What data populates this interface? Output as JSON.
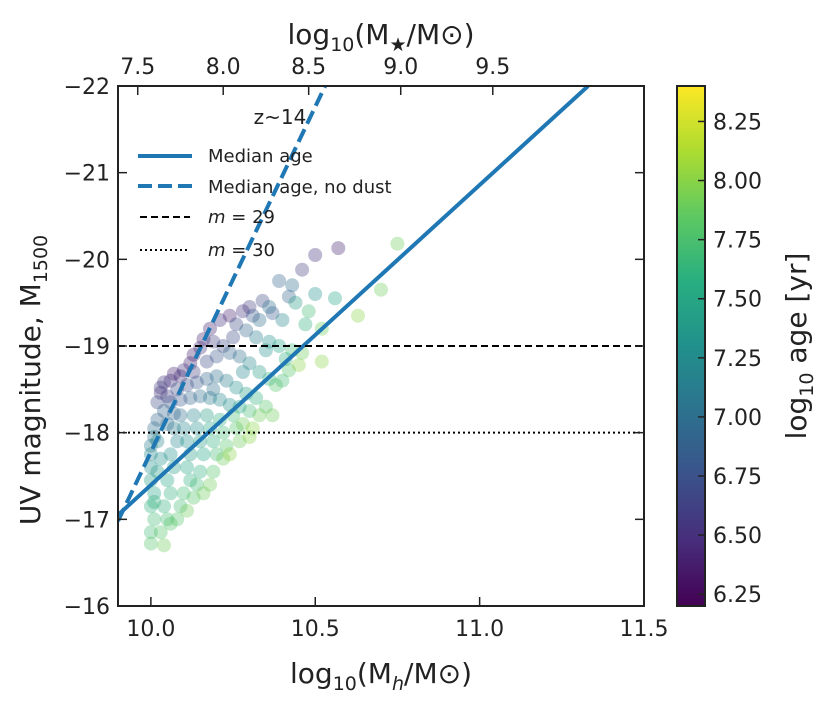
{
  "chart_data": {
    "type": "scatter",
    "xlabel": "log10(Mh/M⊙)",
    "xlabel_parts": {
      "pre": "log",
      "sub": "10",
      "mid": "(M",
      "msub": "h",
      "post": "/M⊙)"
    },
    "ylabel": "UV magnitude, M1500",
    "ylabel_parts": {
      "pre": "UV magnitude, M",
      "sub": "1500"
    },
    "top_xlabel": "log10(M★/M⊙)",
    "top_xlabel_parts": {
      "pre": "log",
      "sub": "10",
      "mid": "(M",
      "msub": "★",
      "post": "/M⊙)"
    },
    "colorbar_label": "log10 age [yr]",
    "colorbar_label_parts": {
      "pre": "log",
      "sub": "10",
      "post": " age [yr]"
    },
    "xlim": [
      9.9,
      11.5
    ],
    "ylim": [
      -16,
      -22
    ],
    "x_ticks": [
      10.0,
      10.5,
      11.0,
      11.5
    ],
    "x_tick_labels": [
      "10.0",
      "10.5",
      "11.0",
      "11.5"
    ],
    "y_ticks": [
      -16,
      -17,
      -18,
      -19,
      -20,
      -21,
      -22
    ],
    "y_tick_labels": [
      "−16",
      "−17",
      "−18",
      "−19",
      "−20",
      "−21",
      "−22"
    ],
    "top_ticks_mh": [
      10.0,
      10.5,
      11.0
    ],
    "top_tick_positions_mh": [
      9.96,
      10.22,
      10.48,
      10.76,
      11.04
    ],
    "top_tick_labels": [
      "7.5",
      "8.0",
      "8.5",
      "9.0",
      "9.5"
    ],
    "colorbar_range": [
      6.2,
      8.4
    ],
    "colorbar_ticks": [
      6.25,
      6.5,
      6.75,
      7.0,
      7.25,
      7.5,
      7.75,
      8.0,
      8.25
    ],
    "colorbar_tick_labels": [
      "6.25",
      "6.50",
      "6.75",
      "7.00",
      "7.25",
      "7.50",
      "7.75",
      "8.00",
      "8.25"
    ],
    "legend": {
      "title": "z~14",
      "entries": [
        {
          "label": "Median age",
          "style": "solid"
        },
        {
          "label": "Median age, no dust",
          "style": "dashed"
        },
        {
          "label_pre": "m",
          "label_post": " = 29",
          "style": "dashed-thin"
        },
        {
          "label_pre": "m",
          "label_post": " = 30",
          "style": "dotted"
        }
      ]
    },
    "series": [
      {
        "name": "Median age",
        "type": "line",
        "style": "solid",
        "color": "#1f77b4",
        "x": [
          9.9,
          11.33
        ],
        "y": [
          -17.05,
          -22.0
        ]
      },
      {
        "name": "Median age, no dust",
        "type": "line",
        "style": "dashed",
        "color": "#1f77b4",
        "x": [
          9.9,
          10.53
        ],
        "y": [
          -16.98,
          -22.0
        ]
      },
      {
        "name": "m=29",
        "type": "hline",
        "style": "dashed",
        "color": "#000000",
        "y": -19.0
      },
      {
        "name": "m=30",
        "type": "hline",
        "style": "dotted",
        "color": "#000000",
        "y": -18.0
      }
    ],
    "scatter": [
      [
        10.57,
        -20.13,
        6.4
      ],
      [
        10.5,
        -20.05,
        6.5
      ],
      [
        10.46,
        -19.88,
        6.6
      ],
      [
        10.75,
        -20.18,
        7.9
      ],
      [
        10.39,
        -19.75,
        6.9
      ],
      [
        10.43,
        -19.7,
        7.0
      ],
      [
        10.5,
        -19.6,
        7.3
      ],
      [
        10.56,
        -19.55,
        7.5
      ],
      [
        10.7,
        -19.65,
        7.9
      ],
      [
        10.34,
        -19.52,
        6.7
      ],
      [
        10.42,
        -19.57,
        6.9
      ],
      [
        10.3,
        -19.45,
        6.6
      ],
      [
        10.37,
        -19.38,
        6.8
      ],
      [
        10.33,
        -19.3,
        7.0
      ],
      [
        10.4,
        -19.3,
        7.2
      ],
      [
        10.47,
        -19.25,
        7.6
      ],
      [
        10.63,
        -19.35,
        8.0
      ],
      [
        10.28,
        -19.4,
        6.5
      ],
      [
        10.24,
        -19.35,
        6.4
      ],
      [
        10.21,
        -19.3,
        6.5
      ],
      [
        10.26,
        -19.25,
        6.7
      ],
      [
        10.29,
        -19.18,
        6.9
      ],
      [
        10.32,
        -19.1,
        7.1
      ],
      [
        10.36,
        -19.05,
        7.3
      ],
      [
        10.39,
        -19.0,
        7.5
      ],
      [
        10.43,
        -18.95,
        7.7
      ],
      [
        10.46,
        -18.92,
        7.9
      ],
      [
        10.52,
        -18.82,
        8.0
      ],
      [
        10.18,
        -19.2,
        6.4
      ],
      [
        10.16,
        -19.08,
        6.4
      ],
      [
        10.19,
        -19.05,
        6.6
      ],
      [
        10.22,
        -19.0,
        6.7
      ],
      [
        10.24,
        -18.92,
        6.9
      ],
      [
        10.27,
        -18.88,
        7.0
      ],
      [
        10.3,
        -18.8,
        7.2
      ],
      [
        10.33,
        -18.7,
        7.4
      ],
      [
        10.36,
        -18.62,
        7.6
      ],
      [
        10.38,
        -18.55,
        7.8
      ],
      [
        10.15,
        -18.98,
        6.5
      ],
      [
        10.13,
        -18.9,
        6.4
      ],
      [
        10.12,
        -18.8,
        6.4
      ],
      [
        10.1,
        -18.72,
        6.5
      ],
      [
        10.09,
        -18.65,
        6.5
      ],
      [
        10.07,
        -18.68,
        6.4
      ],
      [
        10.06,
        -18.6,
        6.5
      ],
      [
        10.04,
        -18.58,
        6.5
      ],
      [
        10.03,
        -18.52,
        6.6
      ],
      [
        10.03,
        -18.46,
        6.5
      ],
      [
        10.02,
        -18.35,
        6.7
      ],
      [
        10.11,
        -18.55,
        6.7
      ],
      [
        10.14,
        -18.58,
        6.8
      ],
      [
        10.17,
        -18.62,
        6.9
      ],
      [
        10.2,
        -18.65,
        7.0
      ],
      [
        10.23,
        -18.6,
        7.1
      ],
      [
        10.26,
        -18.52,
        7.3
      ],
      [
        10.29,
        -18.45,
        7.4
      ],
      [
        10.32,
        -18.4,
        7.6
      ],
      [
        10.35,
        -18.3,
        7.8
      ],
      [
        10.37,
        -18.2,
        7.9
      ],
      [
        10.3,
        -18.25,
        7.7
      ],
      [
        10.27,
        -18.3,
        7.5
      ],
      [
        10.24,
        -18.32,
        7.3
      ],
      [
        10.21,
        -18.38,
        7.2
      ],
      [
        10.18,
        -18.4,
        7.1
      ],
      [
        10.15,
        -18.42,
        7.0
      ],
      [
        10.12,
        -18.4,
        6.9
      ],
      [
        10.09,
        -18.38,
        6.8
      ],
      [
        10.06,
        -18.35,
        6.8
      ],
      [
        10.04,
        -18.25,
        6.9
      ],
      [
        10.02,
        -18.15,
        6.9
      ],
      [
        10.01,
        -18.05,
        7.0
      ],
      [
        10.01,
        -17.95,
        7.1
      ],
      [
        10.0,
        -17.85,
        7.1
      ],
      [
        10.0,
        -17.75,
        7.2
      ],
      [
        10.0,
        -17.6,
        7.3
      ],
      [
        10.0,
        -17.45,
        7.4
      ],
      [
        10.01,
        -17.3,
        7.5
      ],
      [
        10.0,
        -17.15,
        7.6
      ],
      [
        10.01,
        -17.0,
        7.7
      ],
      [
        10.0,
        -16.85,
        7.7
      ],
      [
        10.0,
        -16.72,
        7.8
      ],
      [
        10.04,
        -16.7,
        7.9
      ],
      [
        10.03,
        -16.85,
        7.8
      ],
      [
        10.05,
        -17.0,
        7.7
      ],
      [
        10.04,
        -17.15,
        7.6
      ],
      [
        10.06,
        -17.3,
        7.6
      ],
      [
        10.05,
        -17.45,
        7.5
      ],
      [
        10.07,
        -17.6,
        7.4
      ],
      [
        10.06,
        -17.75,
        7.3
      ],
      [
        10.08,
        -17.9,
        7.2
      ],
      [
        10.07,
        -18.05,
        7.1
      ],
      [
        10.09,
        -18.2,
        7.0
      ],
      [
        10.1,
        -18.05,
        7.2
      ],
      [
        10.11,
        -17.9,
        7.3
      ],
      [
        10.12,
        -17.75,
        7.4
      ],
      [
        10.11,
        -17.6,
        7.5
      ],
      [
        10.12,
        -17.45,
        7.6
      ],
      [
        10.1,
        -17.3,
        7.7
      ],
      [
        10.09,
        -17.15,
        7.7
      ],
      [
        10.08,
        -17.0,
        7.8
      ],
      [
        10.13,
        -18.2,
        7.2
      ],
      [
        10.14,
        -18.05,
        7.3
      ],
      [
        10.15,
        -17.9,
        7.4
      ],
      [
        10.16,
        -17.75,
        7.5
      ],
      [
        10.15,
        -17.55,
        7.6
      ],
      [
        10.14,
        -17.4,
        7.7
      ],
      [
        10.13,
        -17.25,
        7.8
      ],
      [
        10.17,
        -18.2,
        7.4
      ],
      [
        10.18,
        -18.05,
        7.5
      ],
      [
        10.19,
        -17.9,
        7.6
      ],
      [
        10.2,
        -17.75,
        7.7
      ],
      [
        10.19,
        -17.55,
        7.8
      ],
      [
        10.18,
        -17.4,
        7.9
      ],
      [
        10.21,
        -18.15,
        7.6
      ],
      [
        10.22,
        -18.0,
        7.7
      ],
      [
        10.23,
        -17.85,
        7.8
      ],
      [
        10.22,
        -17.7,
        7.9
      ],
      [
        10.25,
        -18.2,
        7.7
      ],
      [
        10.26,
        -18.05,
        7.8
      ],
      [
        10.27,
        -17.9,
        7.9
      ],
      [
        10.28,
        -18.1,
        7.9
      ],
      [
        10.31,
        -18.05,
        8.0
      ],
      [
        10.33,
        -18.2,
        7.9
      ],
      [
        10.42,
        -18.72,
        7.8
      ],
      [
        10.45,
        -18.78,
        8.0
      ],
      [
        10.4,
        -18.6,
        7.7
      ],
      [
        10.3,
        -17.95,
        8.0
      ],
      [
        10.24,
        -17.75,
        8.0
      ],
      [
        10.16,
        -17.3,
        7.9
      ],
      [
        10.11,
        -17.1,
        7.9
      ],
      [
        10.06,
        -16.95,
        7.8
      ],
      [
        10.02,
        -17.55,
        7.4
      ],
      [
        10.03,
        -17.7,
        7.3
      ],
      [
        10.02,
        -17.9,
        7.2
      ],
      [
        10.05,
        -18.1,
        7.0
      ],
      [
        10.08,
        -18.5,
        6.7
      ],
      [
        10.05,
        -18.42,
        6.6
      ],
      [
        10.13,
        -18.7,
        6.6
      ],
      [
        10.17,
        -18.82,
        6.7
      ],
      [
        10.2,
        -18.88,
        6.8
      ],
      [
        10.25,
        -19.1,
        6.7
      ],
      [
        10.31,
        -19.35,
        6.8
      ],
      [
        10.36,
        -19.45,
        7.0
      ],
      [
        10.44,
        -19.5,
        7.4
      ],
      [
        10.48,
        -19.4,
        7.7
      ],
      [
        10.52,
        -19.2,
        7.9
      ],
      [
        10.35,
        -18.95,
        7.3
      ],
      [
        10.41,
        -18.85,
        7.6
      ],
      [
        10.28,
        -18.7,
        7.2
      ],
      [
        10.19,
        -18.5,
        7.0
      ],
      [
        10.07,
        -18.22,
        6.9
      ],
      [
        10.01,
        -17.2,
        7.6
      ]
    ]
  }
}
